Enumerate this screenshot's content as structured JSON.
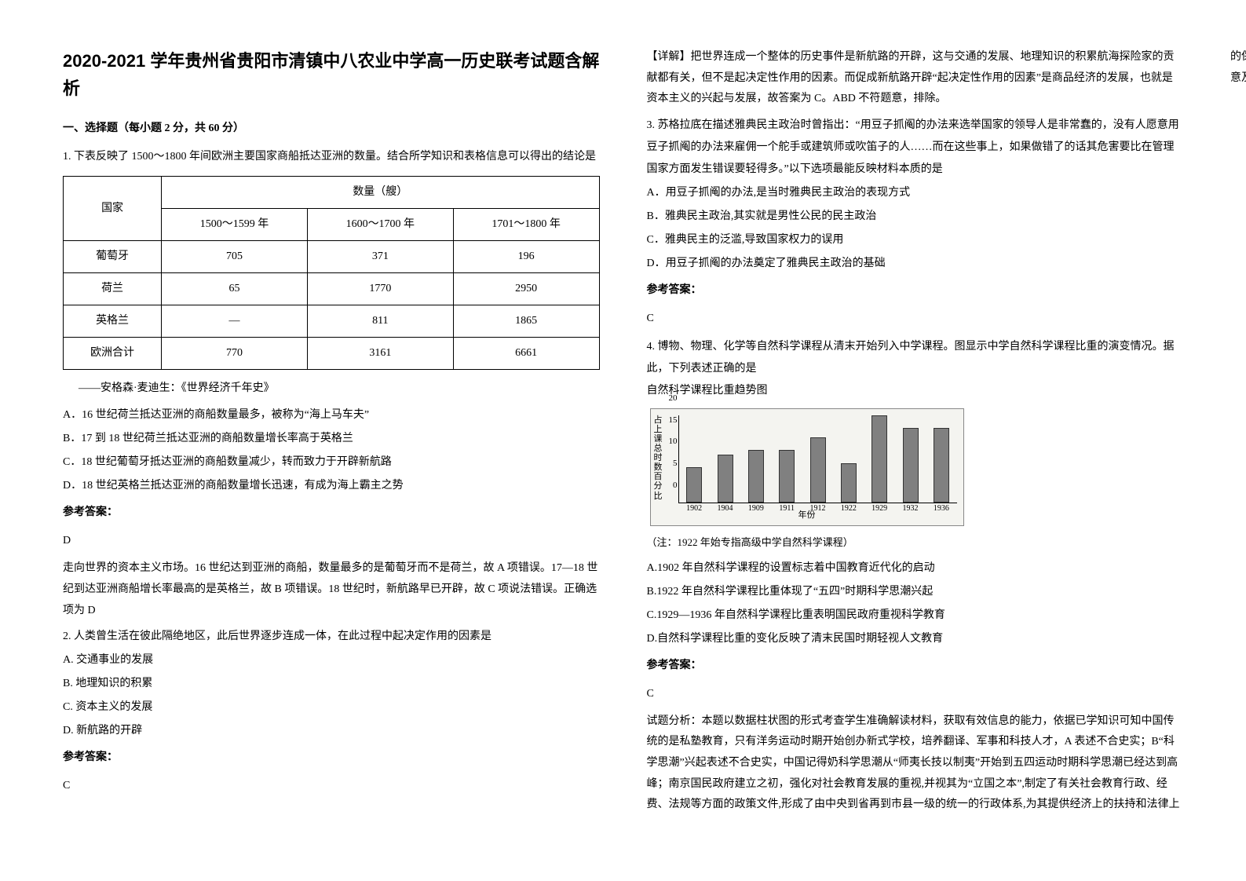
{
  "title": "2020-2021 学年贵州省贵阳市清镇中八农业中学高一历史联考试题含解析",
  "section1_header": "一、选择题（每小题 2 分，共 60 分）",
  "q1": {
    "stem": "1. 下表反映了 1500～1800 年间欧洲主要国家商船抵达亚洲的数量。结合所学知识和表格信息可以得出的结论是",
    "table": {
      "header_country": "国家",
      "header_qty": "数量（艘）",
      "cols": [
        "1500～1599 年",
        "1600～1700 年",
        "1701～1800 年"
      ],
      "rows": [
        {
          "c": "葡萄牙",
          "v": [
            "705",
            "371",
            "196"
          ]
        },
        {
          "c": "荷兰",
          "v": [
            "65",
            "1770",
            "2950"
          ]
        },
        {
          "c": "英格兰",
          "v": [
            "—",
            "811",
            "1865"
          ]
        },
        {
          "c": "欧洲合计",
          "v": [
            "770",
            "3161",
            "6661"
          ]
        }
      ]
    },
    "caption": "——安格森·麦迪生：《世界经济千年史》",
    "opts": [
      "A．16 世纪荷兰抵达亚洲的商船数量最多，被称为“海上马车夫”",
      "B．17 到 18 世纪荷兰抵达亚洲的商船数量增长率高于英格兰",
      "C．18 世纪葡萄牙抵达亚洲的商船数量减少，转而致力于开辟新航路",
      "D．18 世纪英格兰抵达亚洲的商船数量增长迅速，有成为海上霸主之势"
    ],
    "answer_label": "参考答案：",
    "answer": "D",
    "explain": "走向世界的资本主义市场。16 世纪达到亚洲的商船，数量最多的是葡萄牙而不是荷兰，故 A 项错误。17—18 世纪到达亚洲商船增长率最高的是英格兰，故 B 项错误。18 世纪时，新航路早已开辟，故 C 项说法错误。正确选项为 D"
  },
  "q2": {
    "stem": "2. 人类曾生活在彼此隔绝地区，此后世界逐步连成一体，在此过程中起决定作用的因素是",
    "opts": [
      "A. 交通事业的发展",
      "B. 地理知识的积累",
      "C. 资本主义的发展",
      "D. 新航路的开辟"
    ],
    "answer_label": "参考答案：",
    "answer": "C",
    "explain": "【详解】把世界连成一个整体的历史事件是新航路的开辟，这与交通的发展、地理知识的积累航海探险家的贡献都有关，但不是起决定性作用的因素。而促成新航路开辟“起决定性作用的因素”是商品经济的发展，也就是资本主义的兴起与发展，故答案为 C。ABD 不符题意，排除。"
  },
  "q3": {
    "stem": "3. 苏格拉底在描述雅典民主政治时曾指出：“用豆子抓阄的办法来选举国家的领导人是非常蠢的，没有人愿意用豆子抓阄的办法来雇佣一个舵手或建筑师或吹笛子的人……而在这些事上，如果做错了的话其危害要比在管理国家方面发生错误要轻得多。”以下选项最能反映材料本质的是",
    "opts": [
      "A．用豆子抓阄的办法,是当时雅典民主政治的表现方式",
      "B．雅典民主政治,其实就是男性公民的民主政治",
      "C．雅典民主的泛滥,导致国家权力的误用",
      "D．用豆子抓阄的办法奠定了雅典民主政治的基础"
    ],
    "answer_label": "参考答案：",
    "answer": "C"
  },
  "q4": {
    "stem": "4. 博物、物理、化学等自然科学课程从清末开始列入中学课程。图显示中学自然科学课程比重的演变情况。据此，下列表述正确的是",
    "chart_title": "自然科学课程比重趋势图",
    "chart": {
      "ylabel": "占上课总时数百分比",
      "xlabel": "年份",
      "yticks": [
        "0",
        "5",
        "10",
        "15",
        "20"
      ],
      "xcats": [
        "1902",
        "1904",
        "1909",
        "1911",
        "1912",
        "1922",
        "1929",
        "1932",
        "1936"
      ],
      "values": [
        8,
        11,
        12,
        12,
        15,
        9,
        20,
        17,
        17
      ],
      "ylim": 20,
      "bar_color": "#808080",
      "bg": "#f4f4f0"
    },
    "chart_note": "（注：1922 年始专指高级中学自然科学课程）",
    "opts": [
      "A.1902 年自然科学课程的设置标志着中国教育近代化的启动",
      "B.1922 年自然科学课程比重体现了“五四”时期科学思潮兴起",
      "C.1929—1936 年自然科学课程比重表明国民政府重视科学教育",
      "D.自然科学课程比重的变化反映了清末民国时期轻视人文教育"
    ],
    "answer_label": "参考答案：",
    "answer": "C",
    "explain": "试题分析：本题以数据柱状图的形式考查学生准确解读材料，获取有效信息的能力，依据已学知识可知中国传统的是私塾教育，只有洋务运动时期开始创办新式学校，培养翻译、军事和科技人才，A 表述不合史实；B“科学思潮”兴起表述不合史实，中国记得奶科学思潮从“师夷长技以制夷”开始到五四运动时期科学思潮已经达到高峰；南京国民政府建立之初，强化对社会教育发展的重视,并视其为“立国之本”,制定了有关社会教育行政、经费、法规等方面的政策文件,形成了由中央到省再到市县一级的统一的行政体系,为其提供经济上的扶持和法律上的保障,其规模、组织更加完备,教育内容更为广泛,对近代中国社会教育的发展产生了重大影响，C 的表述符合题意及史实；D"
  }
}
